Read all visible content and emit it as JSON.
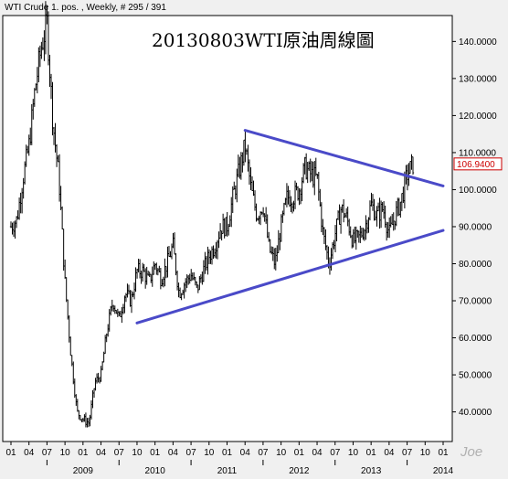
{
  "header": {
    "series_info": "WTI Crude 1. pos. , Weekly, # 295 / 391"
  },
  "watermark": "Joe",
  "chart_data": {
    "type": "candlestick",
    "title": "20130803WTI原油周線圖",
    "y_ticks": [
      "40.0000",
      "50.0000",
      "60.0000",
      "70.0000",
      "80.0000",
      "90.0000",
      "100.0000",
      "110.0000",
      "120.0000",
      "130.0000",
      "140.0000"
    ],
    "ylim": [
      32,
      147
    ],
    "last_price": "106.9400",
    "x_month_labels": [
      "01",
      "04",
      "07",
      "10",
      "01",
      "04",
      "07",
      "10",
      "01",
      "04",
      "07",
      "10",
      "01",
      "04",
      "07",
      "10",
      "01",
      "04",
      "07",
      "10",
      "01",
      "04",
      "07",
      "10",
      "01"
    ],
    "x_year_labels": [
      "2009",
      "2010",
      "2011",
      "2012",
      "2013",
      "2014"
    ],
    "x_range": [
      "2008-01",
      "2014-01"
    ],
    "price_path": [
      {
        "t": "2008-01",
        "v": 90
      },
      {
        "t": "2008-02",
        "v": 92
      },
      {
        "t": "2008-03",
        "v": 103
      },
      {
        "t": "2008-04",
        "v": 112
      },
      {
        "t": "2008-05",
        "v": 127
      },
      {
        "t": "2008-06",
        "v": 138
      },
      {
        "t": "2008-07",
        "v": 145
      },
      {
        "t": "2008-08",
        "v": 118
      },
      {
        "t": "2008-09",
        "v": 103
      },
      {
        "t": "2008-10",
        "v": 75
      },
      {
        "t": "2008-11",
        "v": 55
      },
      {
        "t": "2008-12",
        "v": 40
      },
      {
        "t": "2009-01",
        "v": 38
      },
      {
        "t": "2009-02",
        "v": 37
      },
      {
        "t": "2009-03",
        "v": 48
      },
      {
        "t": "2009-04",
        "v": 50
      },
      {
        "t": "2009-05",
        "v": 62
      },
      {
        "t": "2009-06",
        "v": 70
      },
      {
        "t": "2009-07",
        "v": 65
      },
      {
        "t": "2009-08",
        "v": 72
      },
      {
        "t": "2009-09",
        "v": 70
      },
      {
        "t": "2009-10",
        "v": 78
      },
      {
        "t": "2009-11",
        "v": 78
      },
      {
        "t": "2009-12",
        "v": 75
      },
      {
        "t": "2010-01",
        "v": 80
      },
      {
        "t": "2010-02",
        "v": 76
      },
      {
        "t": "2010-03",
        "v": 80
      },
      {
        "t": "2010-04",
        "v": 85
      },
      {
        "t": "2010-05",
        "v": 72
      },
      {
        "t": "2010-06",
        "v": 75
      },
      {
        "t": "2010-07",
        "v": 77
      },
      {
        "t": "2010-08",
        "v": 73
      },
      {
        "t": "2010-09",
        "v": 78
      },
      {
        "t": "2010-10",
        "v": 82
      },
      {
        "t": "2010-11",
        "v": 85
      },
      {
        "t": "2010-12",
        "v": 90
      },
      {
        "t": "2011-01",
        "v": 90
      },
      {
        "t": "2011-02",
        "v": 98
      },
      {
        "t": "2011-03",
        "v": 105
      },
      {
        "t": "2011-04",
        "v": 112
      },
      {
        "t": "2011-05",
        "v": 100
      },
      {
        "t": "2011-06",
        "v": 93
      },
      {
        "t": "2011-07",
        "v": 96
      },
      {
        "t": "2011-08",
        "v": 84
      },
      {
        "t": "2011-09",
        "v": 80
      },
      {
        "t": "2011-10",
        "v": 90
      },
      {
        "t": "2011-11",
        "v": 98
      },
      {
        "t": "2011-12",
        "v": 98
      },
      {
        "t": "2012-01",
        "v": 100
      },
      {
        "t": "2012-02",
        "v": 106
      },
      {
        "t": "2012-03",
        "v": 104
      },
      {
        "t": "2012-04",
        "v": 103
      },
      {
        "t": "2012-05",
        "v": 88
      },
      {
        "t": "2012-06",
        "v": 80
      },
      {
        "t": "2012-07",
        "v": 88
      },
      {
        "t": "2012-08",
        "v": 95
      },
      {
        "t": "2012-09",
        "v": 92
      },
      {
        "t": "2012-10",
        "v": 86
      },
      {
        "t": "2012-11",
        "v": 87
      },
      {
        "t": "2012-12",
        "v": 90
      },
      {
        "t": "2013-01",
        "v": 96
      },
      {
        "t": "2013-02",
        "v": 93
      },
      {
        "t": "2013-03",
        "v": 95
      },
      {
        "t": "2013-04",
        "v": 88
      },
      {
        "t": "2013-05",
        "v": 93
      },
      {
        "t": "2013-06",
        "v": 97
      },
      {
        "t": "2013-07",
        "v": 104
      },
      {
        "t": "2013-08",
        "v": 107
      }
    ],
    "trendlines": [
      {
        "name": "upper",
        "color": "#4a4ac8",
        "from": {
          "t": "2011-04",
          "v": 116
        },
        "to": {
          "t": "2014-01",
          "v": 101
        }
      },
      {
        "name": "lower",
        "color": "#4a4ac8",
        "from": {
          "t": "2009-10",
          "v": 64
        },
        "to": {
          "t": "2014-01",
          "v": 89
        }
      }
    ],
    "colors": {
      "bars": "#000000",
      "price_marker": "#cc0000",
      "trendline": "#4a4ac8"
    }
  }
}
